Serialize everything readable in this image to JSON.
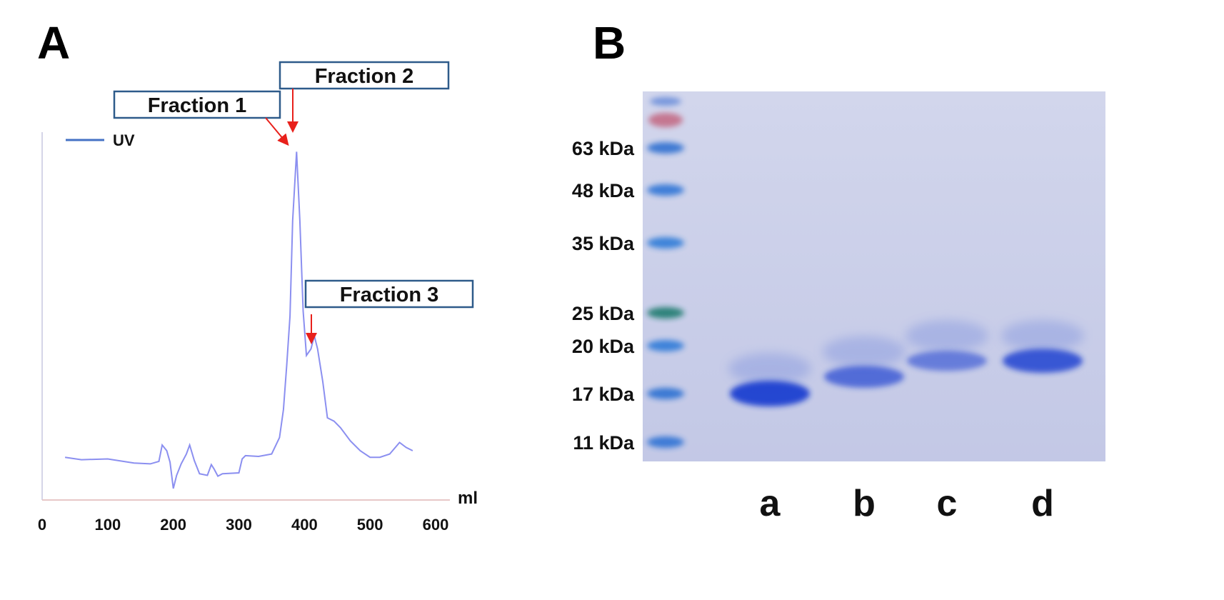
{
  "panel_a": {
    "letter": "A",
    "legend_label": "UV",
    "x_unit_label": "ml",
    "callouts": [
      {
        "label": "Fraction 1"
      },
      {
        "label": "Fraction 2"
      },
      {
        "label": "Fraction 3"
      }
    ]
  },
  "panel_b": {
    "letter": "B",
    "marker_labels": [
      "63 kDa",
      "48 kDa",
      "35 kDa",
      "25 kDa",
      "20 kDa",
      "17 kDa",
      "11 kDa"
    ],
    "lane_labels": [
      "a",
      "b",
      "c",
      "d"
    ]
  },
  "colors": {
    "trace": "#8b8ff0",
    "legend_line": "#4472c4",
    "callout_border": "#2e5b8a",
    "arrow": "#e8201b",
    "gel_bg": "#c9cee8",
    "band": "#1f3fd0"
  },
  "chart_data": [
    {
      "type": "line",
      "title": "",
      "xlabel": "ml",
      "ylabel": "",
      "xlim": [
        0,
        600
      ],
      "xticks": [
        0,
        100,
        200,
        300,
        400,
        500,
        600
      ],
      "grid": false,
      "legend": "top-left",
      "series": [
        {
          "name": "UV",
          "x": [
            35,
            60,
            100,
            140,
            165,
            178,
            183,
            190,
            195,
            200,
            205,
            212,
            220,
            225,
            232,
            240,
            252,
            258,
            262,
            268,
            275,
            300,
            305,
            310,
            330,
            350,
            362,
            368,
            373,
            378,
            382,
            388,
            393,
            398,
            403,
            410,
            415,
            420,
            428,
            435,
            445,
            455,
            470,
            485,
            500,
            515,
            530,
            545,
            555,
            565
          ],
          "y": [
            0.26,
            0.245,
            0.25,
            0.225,
            0.22,
            0.235,
            0.335,
            0.3,
            0.23,
            0.07,
            0.15,
            0.22,
            0.28,
            0.335,
            0.24,
            0.16,
            0.15,
            0.215,
            0.19,
            0.145,
            0.16,
            0.165,
            0.25,
            0.27,
            0.265,
            0.28,
            0.38,
            0.55,
            0.82,
            1.12,
            1.7,
            2.12,
            1.7,
            1.15,
            0.88,
            0.92,
            1.0,
            0.92,
            0.72,
            0.5,
            0.48,
            0.44,
            0.36,
            0.3,
            0.26,
            0.26,
            0.28,
            0.35,
            0.32,
            0.3
          ]
        }
      ],
      "annotations": [
        {
          "text": "Fraction 1",
          "x": 375
        },
        {
          "text": "Fraction 2",
          "x": 382
        },
        {
          "text": "Fraction 3",
          "x": 410
        }
      ]
    },
    {
      "type": "table",
      "title": "",
      "marker_kda": [
        63,
        48,
        35,
        25,
        20,
        17,
        11
      ],
      "lanes": [
        "a",
        "b",
        "c",
        "d"
      ],
      "main_band_kda": [
        17,
        18,
        19,
        19
      ],
      "main_band_intensity": [
        1.0,
        0.55,
        0.35,
        0.8
      ]
    }
  ]
}
